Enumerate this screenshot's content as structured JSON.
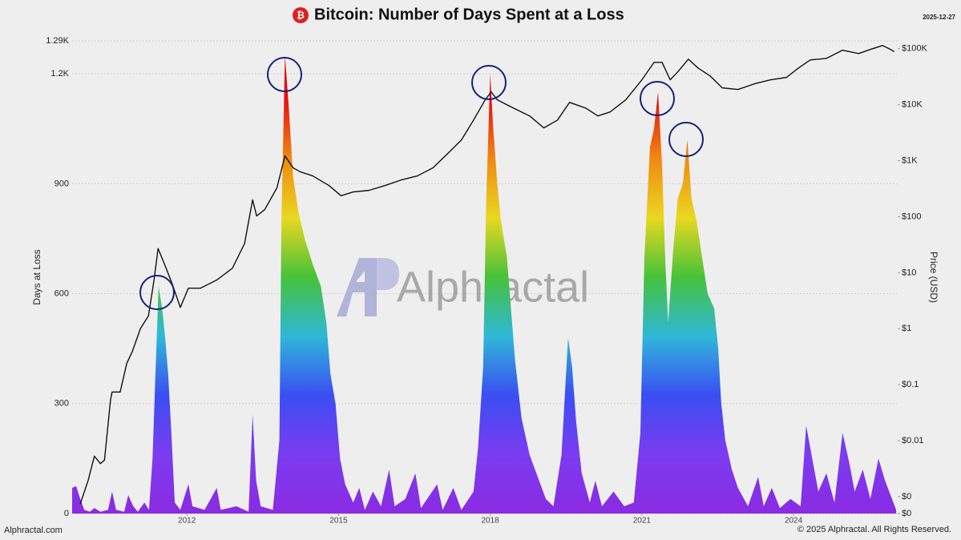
{
  "chart_data": {
    "type": "area",
    "title": "Bitcoin: Number of Days Spent at a Loss",
    "icon": "₿",
    "date": "2025-12-27",
    "watermark": "Alphractal",
    "footer_left": "Alphractal.com",
    "footer_right": "© 2025 Alphractal. All Rights Reserved.",
    "ylabel": "Days at Loss",
    "y2label": "Price (USD)",
    "xlim": [
      2009.73,
      2026.06
    ],
    "xticks": [
      2012,
      2015,
      2018,
      2021,
      2024
    ],
    "ylim": [
      0,
      1290
    ],
    "yticks": [
      0,
      300,
      600,
      900,
      {
        "value": 1200,
        "label": "1.2K"
      },
      {
        "value": 1290,
        "label": "1.29K"
      }
    ],
    "y2lim": [
      0.0005,
      138000
    ],
    "y2log": true,
    "y2ticks": [
      {
        "value": 0.0005,
        "label": "$0"
      },
      {
        "value": 0.001,
        "label": "$0"
      },
      {
        "value": 0.01,
        "label": "$0.01"
      },
      {
        "value": 0.1,
        "label": "$0.1"
      },
      {
        "value": 1,
        "label": "$1"
      },
      {
        "value": 10,
        "label": "$10"
      },
      {
        "value": 100,
        "label": "$100"
      },
      {
        "value": 1000,
        "label": "$1K"
      },
      {
        "value": 10000,
        "label": "$10K"
      },
      {
        "value": 100000,
        "label": "$100K"
      }
    ],
    "grid": true,
    "series": [
      {
        "type": "area",
        "colors": [
          "#8a2be2",
          "#7b3cf0",
          "#3a4ef2",
          "#2fb8d8",
          "#46c23a",
          "#e8d820",
          "#f08a10",
          "#e81010",
          "#d80000"
        ],
        "x": [
          2009.73,
          2009.81,
          2009.89,
          2009.97,
          2010.08,
          2010.17,
          2010.29,
          2010.44,
          2010.52,
          2010.6,
          2010.76,
          2010.84,
          2010.94,
          2011.03,
          2011.16,
          2011.25,
          2011.32,
          2011.37,
          2011.44,
          2011.51,
          2011.57,
          2011.63,
          2011.7,
          2011.76,
          2011.87,
          2012.03,
          2012.11,
          2012.35,
          2012.59,
          2012.67,
          2012.98,
          2013.22,
          2013.3,
          2013.37,
          2013.46,
          2013.7,
          2013.83,
          2013.87,
          2013.94,
          2014.02,
          2014.1,
          2014.21,
          2014.33,
          2014.49,
          2014.65,
          2014.76,
          2014.84,
          2014.94,
          2015.03,
          2015.13,
          2015.29,
          2015.41,
          2015.52,
          2015.68,
          2015.84,
          2016.0,
          2016.11,
          2016.32,
          2016.52,
          2016.63,
          2016.95,
          2017.06,
          2017.27,
          2017.43,
          2017.67,
          2017.76,
          2017.86,
          2017.92,
          2018.0,
          2018.06,
          2018.14,
          2018.21,
          2018.33,
          2018.41,
          2018.49,
          2018.62,
          2018.78,
          2018.94,
          2019.1,
          2019.25,
          2019.41,
          2019.54,
          2019.62,
          2019.7,
          2019.81,
          2019.97,
          2020.08,
          2020.21,
          2020.44,
          2020.65,
          2020.84,
          2020.97,
          2021.05,
          2021.16,
          2021.24,
          2021.32,
          2021.4,
          2021.46,
          2021.52,
          2021.62,
          2021.71,
          2021.81,
          2021.9,
          2021.98,
          2022.08,
          2022.19,
          2022.3,
          2022.43,
          2022.51,
          2022.57,
          2022.65,
          2022.78,
          2022.9,
          2023.1,
          2023.3,
          2023.41,
          2023.57,
          2023.73,
          2023.94,
          2024.14,
          2024.25,
          2024.37,
          2024.49,
          2024.65,
          2024.81,
          2024.97,
          2025.1,
          2025.21,
          2025.37,
          2025.52,
          2025.68,
          2025.81,
          2025.92,
          2026.03
        ],
        "values": [
          70,
          75,
          40,
          10,
          5,
          15,
          5,
          10,
          60,
          10,
          5,
          50,
          20,
          5,
          30,
          10,
          150,
          350,
          620,
          560,
          480,
          380,
          200,
          30,
          10,
          80,
          20,
          10,
          70,
          10,
          20,
          5,
          270,
          90,
          20,
          10,
          200,
          800,
          1250,
          1100,
          920,
          820,
          750,
          680,
          620,
          520,
          380,
          300,
          150,
          80,
          30,
          70,
          10,
          60,
          20,
          120,
          20,
          40,
          110,
          15,
          80,
          10,
          70,
          10,
          60,
          180,
          400,
          850,
          1200,
          1050,
          900,
          800,
          700,
          560,
          420,
          260,
          160,
          100,
          40,
          20,
          160,
          480,
          400,
          250,
          110,
          30,
          90,
          20,
          60,
          20,
          30,
          220,
          700,
          1000,
          1050,
          1150,
          950,
          700,
          520,
          720,
          860,
          900,
          1020,
          860,
          800,
          700,
          600,
          560,
          450,
          300,
          200,
          120,
          70,
          20,
          100,
          20,
          70,
          15,
          40,
          20,
          240,
          150,
          60,
          110,
          30,
          220,
          140,
          60,
          120,
          40,
          150,
          90,
          50,
          10
        ]
      },
      {
        "type": "line",
        "axis": "y2",
        "color": "#111111",
        "x": [
          2009.89,
          2010.05,
          2010.17,
          2010.29,
          2010.37,
          2010.49,
          2010.52,
          2010.68,
          2010.81,
          2010.92,
          2011.08,
          2011.24,
          2011.35,
          2011.43,
          2011.56,
          2011.71,
          2011.87,
          2012.03,
          2012.27,
          2012.59,
          2012.9,
          2013.14,
          2013.3,
          2013.38,
          2013.54,
          2013.78,
          2013.94,
          2014.1,
          2014.25,
          2014.49,
          2014.81,
          2015.05,
          2015.29,
          2015.6,
          2015.92,
          2016.24,
          2016.56,
          2016.87,
          2017.19,
          2017.43,
          2017.67,
          2017.9,
          2018.02,
          2018.14,
          2018.46,
          2018.78,
          2019.06,
          2019.33,
          2019.57,
          2019.89,
          2020.13,
          2020.37,
          2020.68,
          2021.0,
          2021.24,
          2021.4,
          2021.56,
          2021.71,
          2021.92,
          2022.11,
          2022.35,
          2022.59,
          2022.9,
          2023.22,
          2023.54,
          2023.86,
          2024.1,
          2024.33,
          2024.65,
          2024.97,
          2025.29,
          2025.52,
          2025.76,
          2025.92,
          2025.99
        ],
        "values": [
          0.00074,
          0.002,
          0.0053,
          0.0039,
          0.0045,
          0.054,
          0.074,
          0.074,
          0.24,
          0.39,
          1.0,
          1.7,
          7.4,
          27,
          14,
          6.3,
          2.4,
          5.3,
          5.3,
          7.4,
          12,
          33,
          200,
          103,
          134,
          326,
          1220,
          747,
          630,
          535,
          360,
          237,
          277,
          295,
          360,
          453,
          535,
          747,
          1430,
          2340,
          5300,
          12200,
          16900,
          12200,
          8700,
          6300,
          3850,
          5300,
          11000,
          8700,
          6300,
          7400,
          12200,
          27800,
          57000,
          57000,
          27800,
          38600,
          65000,
          45300,
          32600,
          20000,
          18700,
          23500,
          27800,
          30700,
          45300,
          63000,
          67000,
          94000,
          82000,
          97000,
          114000,
          97000,
          88000
        ]
      }
    ]
  }
}
